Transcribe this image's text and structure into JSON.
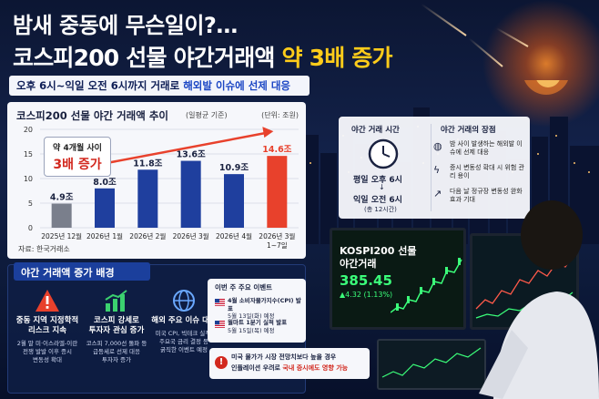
{
  "title": {
    "line1": "밤새 중동에 무슨일이?…",
    "line2_main": "코스피200 선물 야간거래액 ",
    "line2_highlight": "약 3배 증가"
  },
  "subtitle": {
    "part1": "오후 6시~익일 오전 6시까지 거래로 ",
    "part2": "해외발 이슈에 선제 대응"
  },
  "chart": {
    "title": "코스피200 선물 야간 거래액 추이",
    "subtitle": "(일평균 기준)",
    "unit": "(단위: 조원)",
    "source": "자료: 한국거래소",
    "callout_line1": "약 4개월 사이",
    "callout_line2": "3배 증가"
  },
  "chart_data": {
    "type": "bar",
    "categories": [
      "2025년 12월",
      "2026년 1월",
      "2026년 2월",
      "2026년 3월",
      "2026년 4월",
      "2026년 3월 1~7일"
    ],
    "values": [
      4.9,
      8.0,
      11.8,
      13.6,
      10.9,
      14.6
    ],
    "data_labels": [
      "4.9조",
      "8.0조",
      "11.8조",
      "13.6조",
      "10.9조",
      "14.6조"
    ],
    "colors": [
      "#7a7f8c",
      "#1f3f9e",
      "#1f3f9e",
      "#1f3f9e",
      "#1f3f9e",
      "#e8412c"
    ],
    "label_colors": [
      "#1a2240",
      "#1a2240",
      "#1a2240",
      "#1a2240",
      "#1a2240",
      "#e8412c"
    ],
    "yticks": [
      0,
      5,
      10,
      15,
      20
    ],
    "ylim": [
      0,
      20
    ],
    "grid": true,
    "title": "코스피200 선물 야간 거래액 추이",
    "ylabel": "",
    "xlabel": ""
  },
  "info": {
    "left_heading": "야간 거래 시간",
    "time_line1": "평일 오후 6시",
    "time_arrow": "↓",
    "time_line2": "익일 오전 6시",
    "time_note": "(총 12시간)",
    "right_heading": "야간 거래의 장점",
    "features": [
      {
        "icon": "globe-icon",
        "text": "밤 사이 발생하는 해외발 이슈에 선제 대응"
      },
      {
        "icon": "bolt-icon",
        "text": "증시 변동성 확대 시 위험 관리 용이"
      },
      {
        "icon": "chart-up-icon",
        "text": "다음 날 정규장 변동성 완화 효과 기대"
      }
    ]
  },
  "reasons": {
    "heading": "야간 거래액 증가 배경",
    "items": [
      {
        "icon": "warning-icon",
        "title": "중동 지역 지정학적\n리스크 지속",
        "desc": "2월 말 미·이스라엘-이란\n전쟁 발발 이후 증시\n변동성 확대"
      },
      {
        "icon": "growth-icon",
        "title": "코스피 강세로\n투자자 관심 증가",
        "desc": "코스피 7,000선 돌파 등\n급등세로 선제 대응\n투자자 증가"
      },
      {
        "icon": "globe-icon",
        "title": "해외 주요 이슈 대기",
        "desc": "미국 CPI, 빅테크 실적,\n주요국 금리 결정 등\n굵직한 이벤트 예정"
      }
    ]
  },
  "events": {
    "heading": "이번 주 주요 이벤트",
    "items": [
      {
        "title": "4월 소비자물가지수(CPI) 발표",
        "date": "5월 13일(화) 예정"
      },
      {
        "title": "월마트 1분기 실적 발표",
        "date": "5월 15일(목) 예정"
      }
    ]
  },
  "warning": {
    "line1": "미국 물가가 시장 전망치보다 높을 경우",
    "line2_a": "인플레이션 우려로 ",
    "line2_b": "국내 증시에도 영향 가능"
  },
  "monitor": {
    "line1": "KOSPI200 선물",
    "line2": "야간거래",
    "price": "385.45",
    "change": "▲4.32 (1.13%)"
  }
}
